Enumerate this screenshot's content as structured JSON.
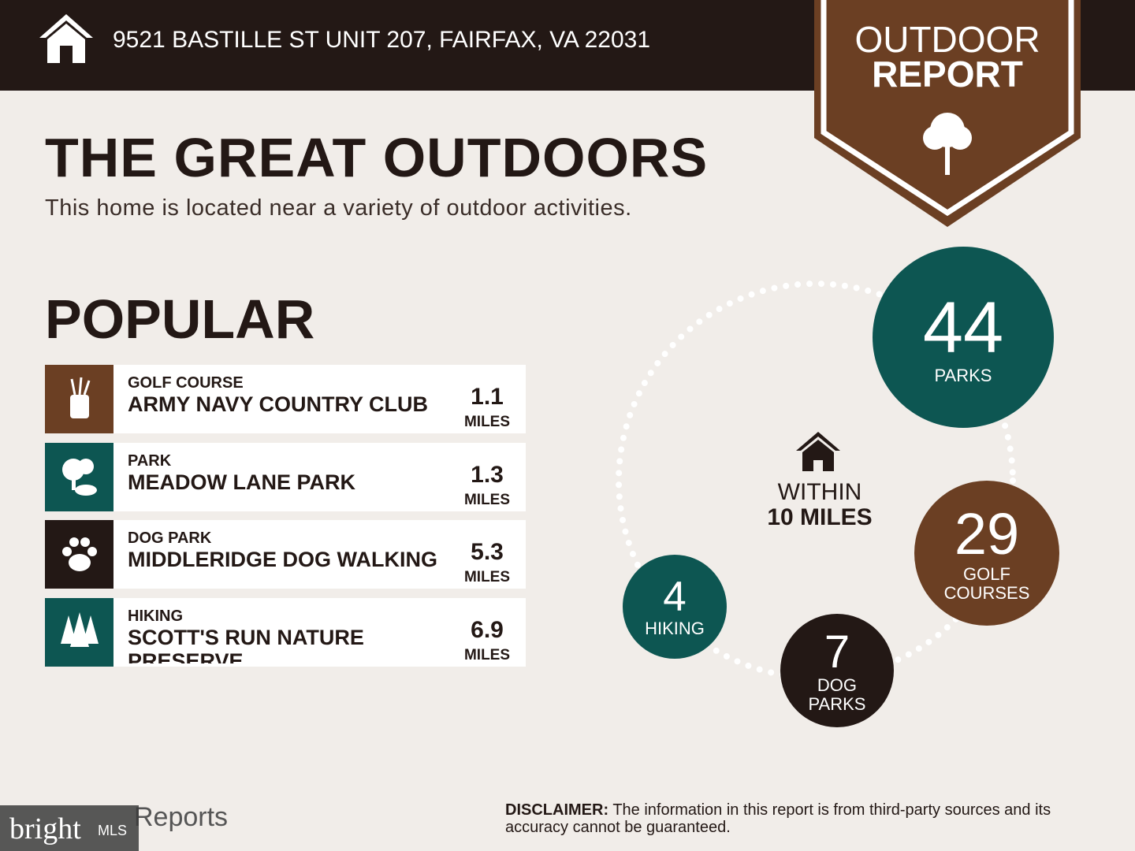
{
  "header": {
    "address": "9521 BASTILLE ST UNIT 207, FAIRFAX, VA 22031"
  },
  "badge": {
    "line1": "OUTDOOR",
    "line2": "REPORT"
  },
  "title": "THE GREAT OUTDOORS",
  "subtitle": "This home is located near a variety of outdoor activities.",
  "popular": {
    "heading": "POPULAR",
    "items": [
      {
        "category": "GOLF COURSE",
        "name": "ARMY NAVY COUNTRY CLUB",
        "distance": 1.1,
        "unit": "MILES"
      },
      {
        "category": "PARK",
        "name": "MEADOW LANE PARK",
        "distance": 1.3,
        "unit": "MILES"
      },
      {
        "category": "DOG PARK",
        "name": "MIDDLERIDGE DOG WALKING",
        "distance": 5.3,
        "unit": "MILES"
      },
      {
        "category": "HIKING",
        "name": "SCOTT'S RUN NATURE PRESERVE",
        "distance": 6.9,
        "unit": "MILES"
      }
    ]
  },
  "summary": {
    "center_line1": "WITHIN",
    "center_line2": "10 MILES",
    "counts": [
      {
        "count": 44,
        "label": "PARKS"
      },
      {
        "count": 29,
        "label": "GOLF COURSES"
      },
      {
        "count": 7,
        "label": "DOG PARKS"
      },
      {
        "count": 4,
        "label": "HIKING"
      }
    ]
  },
  "footer": {
    "logo_text": "Reports",
    "disclaimer_label": "DISCLAIMER:",
    "disclaimer": "The information in this report is from third-party sources and its accuracy cannot be guaranteed.",
    "watermark_brand": "bright",
    "watermark_suffix": "MLS"
  }
}
